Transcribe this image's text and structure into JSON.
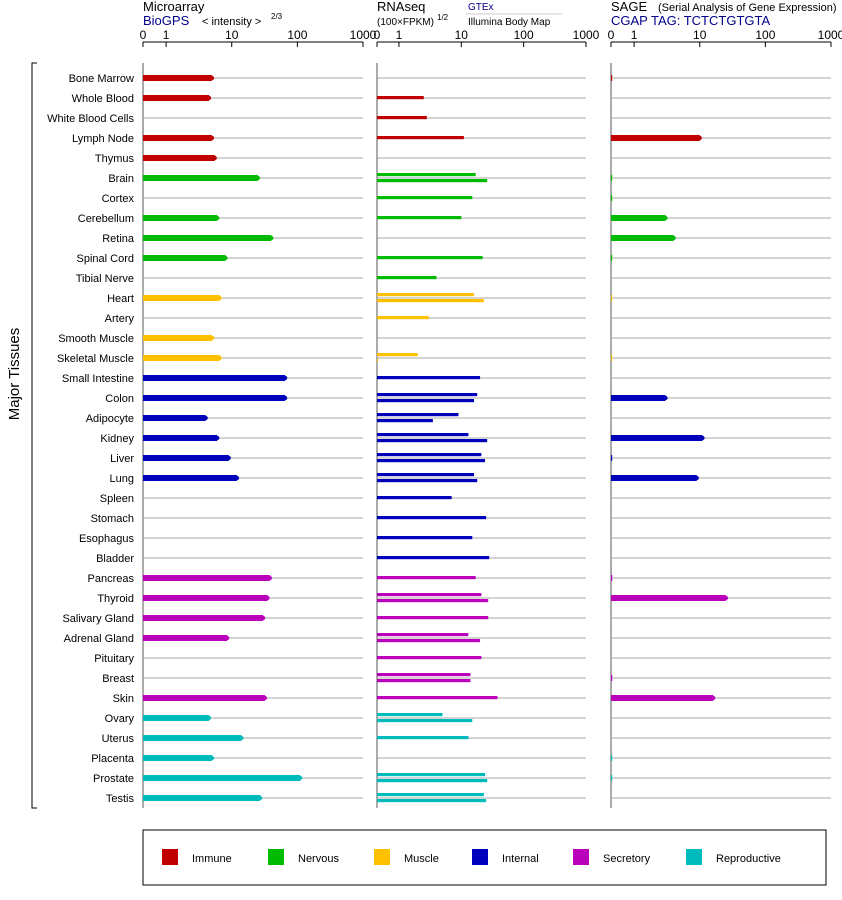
{
  "colors": {
    "Immune": "#c00000",
    "Nervous": "#00bb00",
    "Muscle": "#ffc000",
    "Internal": "#0000bb",
    "Secretory": "#bb00bb",
    "Reproductive": "#00bbbb"
  },
  "headers": {
    "microarray": {
      "title": "Microarray",
      "source": "BioGPS",
      "metric": "< intensity >",
      "metric_exp": "2/3"
    },
    "rnaseq": {
      "title": "RNAseq",
      "metric": "(100×FPKM)",
      "metric_exp": "1/2",
      "source1": "GTEx",
      "source2": "Illumina Body Map"
    },
    "sage": {
      "title": "SAGE",
      "subtitle": "(Serial Analysis of Gene Expression)",
      "tag": "CGAP  TAG: TCTCTGTGTA"
    }
  },
  "chart_data": {
    "type": "bar",
    "orientation": "horizontal",
    "ylabel": "Major Tissues",
    "axis_ticks": [
      "0",
      "1",
      "10",
      "100",
      "1000"
    ],
    "axis_tick_values": [
      0,
      1,
      10,
      100,
      1000
    ],
    "legend": [
      "Immune",
      "Nervous",
      "Muscle",
      "Internal",
      "Secretory",
      "Reproductive"
    ],
    "legend_placement": "bottom",
    "tissues": [
      {
        "name": "Bone Marrow",
        "system": "Immune",
        "microarray": 5,
        "rnaseq": [],
        "sage": 0.05
      },
      {
        "name": "Whole Blood",
        "system": "Immune",
        "microarray": 4.5,
        "rnaseq": [
          2.5
        ],
        "sage": 0
      },
      {
        "name": "White Blood Cells",
        "system": "Immune",
        "microarray": 0,
        "rnaseq": [
          2.8
        ],
        "sage": 0
      },
      {
        "name": "Lymph Node",
        "system": "Immune",
        "microarray": 5,
        "rnaseq": [
          11
        ],
        "sage": 10
      },
      {
        "name": "Thymus",
        "system": "Immune",
        "microarray": 5.5,
        "rnaseq": [],
        "sage": 0
      },
      {
        "name": "Brain",
        "system": "Nervous",
        "microarray": 25,
        "rnaseq": [
          17,
          26
        ],
        "sage": 0.03
      },
      {
        "name": "Cortex",
        "system": "Nervous",
        "microarray": 0,
        "rnaseq": [
          15
        ],
        "sage": 0.03
      },
      {
        "name": "Cerebellum",
        "system": "Nervous",
        "microarray": 6,
        "rnaseq": [
          10
        ],
        "sage": 3
      },
      {
        "name": "Retina",
        "system": "Nervous",
        "microarray": 40,
        "rnaseq": [],
        "sage": 4
      },
      {
        "name": "Spinal Cord",
        "system": "Nervous",
        "microarray": 8,
        "rnaseq": [
          22
        ],
        "sage": 0.03
      },
      {
        "name": "Tibial Nerve",
        "system": "Nervous",
        "microarray": 0,
        "rnaseq": [
          4
        ],
        "sage": 0
      },
      {
        "name": "Heart",
        "system": "Muscle",
        "microarray": 6.5,
        "rnaseq": [
          16,
          23
        ],
        "sage": 0.02
      },
      {
        "name": "Artery",
        "system": "Muscle",
        "microarray": 0,
        "rnaseq": [
          3
        ],
        "sage": 0
      },
      {
        "name": "Smooth Muscle",
        "system": "Muscle",
        "microarray": 5,
        "rnaseq": [],
        "sage": 0
      },
      {
        "name": "Skeletal Muscle",
        "system": "Muscle",
        "microarray": 6.5,
        "rnaseq": [
          2,
          0.05
        ],
        "sage": 0.02
      },
      {
        "name": "Small Intestine",
        "system": "Internal",
        "microarray": 65,
        "rnaseq": [
          20
        ],
        "sage": 0
      },
      {
        "name": "Colon",
        "system": "Internal",
        "microarray": 65,
        "rnaseq": [
          18,
          16
        ],
        "sage": 3
      },
      {
        "name": "Adipocyte",
        "system": "Internal",
        "microarray": 4,
        "rnaseq": [
          9,
          3.5
        ],
        "sage": 0
      },
      {
        "name": "Kidney",
        "system": "Internal",
        "microarray": 6,
        "rnaseq": [
          13,
          26
        ],
        "sage": 11
      },
      {
        "name": "Liver",
        "system": "Internal",
        "microarray": 9,
        "rnaseq": [
          21,
          24
        ],
        "sage": 0.05
      },
      {
        "name": "Lung",
        "system": "Internal",
        "microarray": 12,
        "rnaseq": [
          16,
          18
        ],
        "sage": 9
      },
      {
        "name": "Spleen",
        "system": "Internal",
        "microarray": 0,
        "rnaseq": [
          7
        ],
        "sage": 0
      },
      {
        "name": "Stomach",
        "system": "Internal",
        "microarray": 0,
        "rnaseq": [
          25
        ],
        "sage": 0
      },
      {
        "name": "Esophagus",
        "system": "Internal",
        "microarray": 0,
        "rnaseq": [
          15
        ],
        "sage": 0
      },
      {
        "name": "Bladder",
        "system": "Internal",
        "microarray": 0,
        "rnaseq": [
          28
        ],
        "sage": 0
      },
      {
        "name": "Pancreas",
        "system": "Secretory",
        "microarray": 38,
        "rnaseq": [
          17
        ],
        "sage": 0.05
      },
      {
        "name": "Thyroid",
        "system": "Secretory",
        "microarray": 35,
        "rnaseq": [
          21,
          27
        ],
        "sage": 25
      },
      {
        "name": "Salivary Gland",
        "system": "Secretory",
        "microarray": 30,
        "rnaseq": [
          27
        ],
        "sage": 0
      },
      {
        "name": "Adrenal Gland",
        "system": "Secretory",
        "microarray": 8.5,
        "rnaseq": [
          13,
          20
        ],
        "sage": 0
      },
      {
        "name": "Pituitary",
        "system": "Secretory",
        "microarray": 0,
        "rnaseq": [
          21
        ],
        "sage": 0
      },
      {
        "name": "Breast",
        "system": "Secretory",
        "microarray": 0,
        "rnaseq": [
          14,
          14
        ],
        "sage": 0.05
      },
      {
        "name": "Skin",
        "system": "Secretory",
        "microarray": 32,
        "rnaseq": [
          38
        ],
        "sage": 16
      },
      {
        "name": "Ovary",
        "system": "Reproductive",
        "microarray": 4.5,
        "rnaseq": [
          5,
          15
        ],
        "sage": 0
      },
      {
        "name": "Uterus",
        "system": "Reproductive",
        "microarray": 14,
        "rnaseq": [
          13
        ],
        "sage": 0
      },
      {
        "name": "Placenta",
        "system": "Reproductive",
        "microarray": 5,
        "rnaseq": [],
        "sage": 0.03
      },
      {
        "name": "Prostate",
        "system": "Reproductive",
        "microarray": 110,
        "rnaseq": [
          24,
          26
        ],
        "sage": 0.03
      },
      {
        "name": "Testis",
        "system": "Reproductive",
        "microarray": 27,
        "rnaseq": [
          23,
          25
        ],
        "sage": 0
      }
    ]
  }
}
